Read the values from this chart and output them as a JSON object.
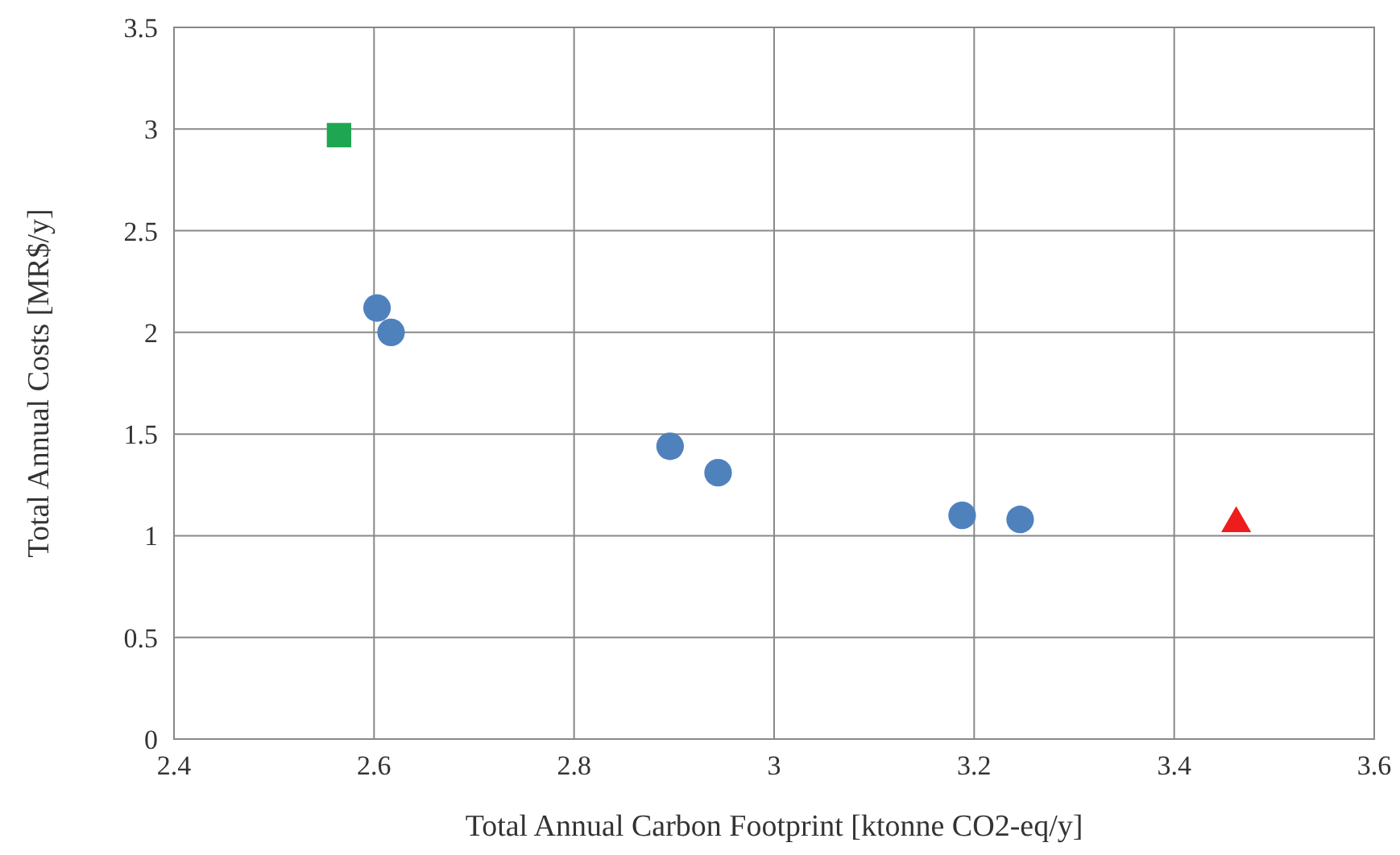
{
  "chart_data": {
    "type": "scatter",
    "xlabel": "Total Annual Carbon Footprint [ktonne CO2-eq/y]",
    "ylabel": "Total Annual Costs [MR$/y]",
    "xlim": [
      2.4,
      3.6
    ],
    "xticks": [
      2.4,
      2.6,
      2.8,
      3,
      3.2,
      3.4,
      3.6
    ],
    "ylim": [
      0,
      3.5
    ],
    "yticks": [
      0,
      0.5,
      1,
      1.5,
      2,
      2.5,
      3,
      3.5
    ],
    "grid": true,
    "series": [
      {
        "color": "#4f81bd",
        "marker": "circle",
        "x": [
          2.603,
          2.617,
          2.896,
          2.944,
          3.188,
          3.246
        ],
        "values": [
          2.12,
          2.0,
          1.44,
          1.31,
          1.1,
          1.08
        ]
      },
      {
        "color": "#1fa652",
        "marker": "square",
        "x": [
          2.565
        ],
        "values": [
          2.97
        ]
      },
      {
        "color": "#ee1c1c",
        "marker": "triangle",
        "x": [
          3.462
        ],
        "values": [
          1.06
        ]
      }
    ]
  }
}
